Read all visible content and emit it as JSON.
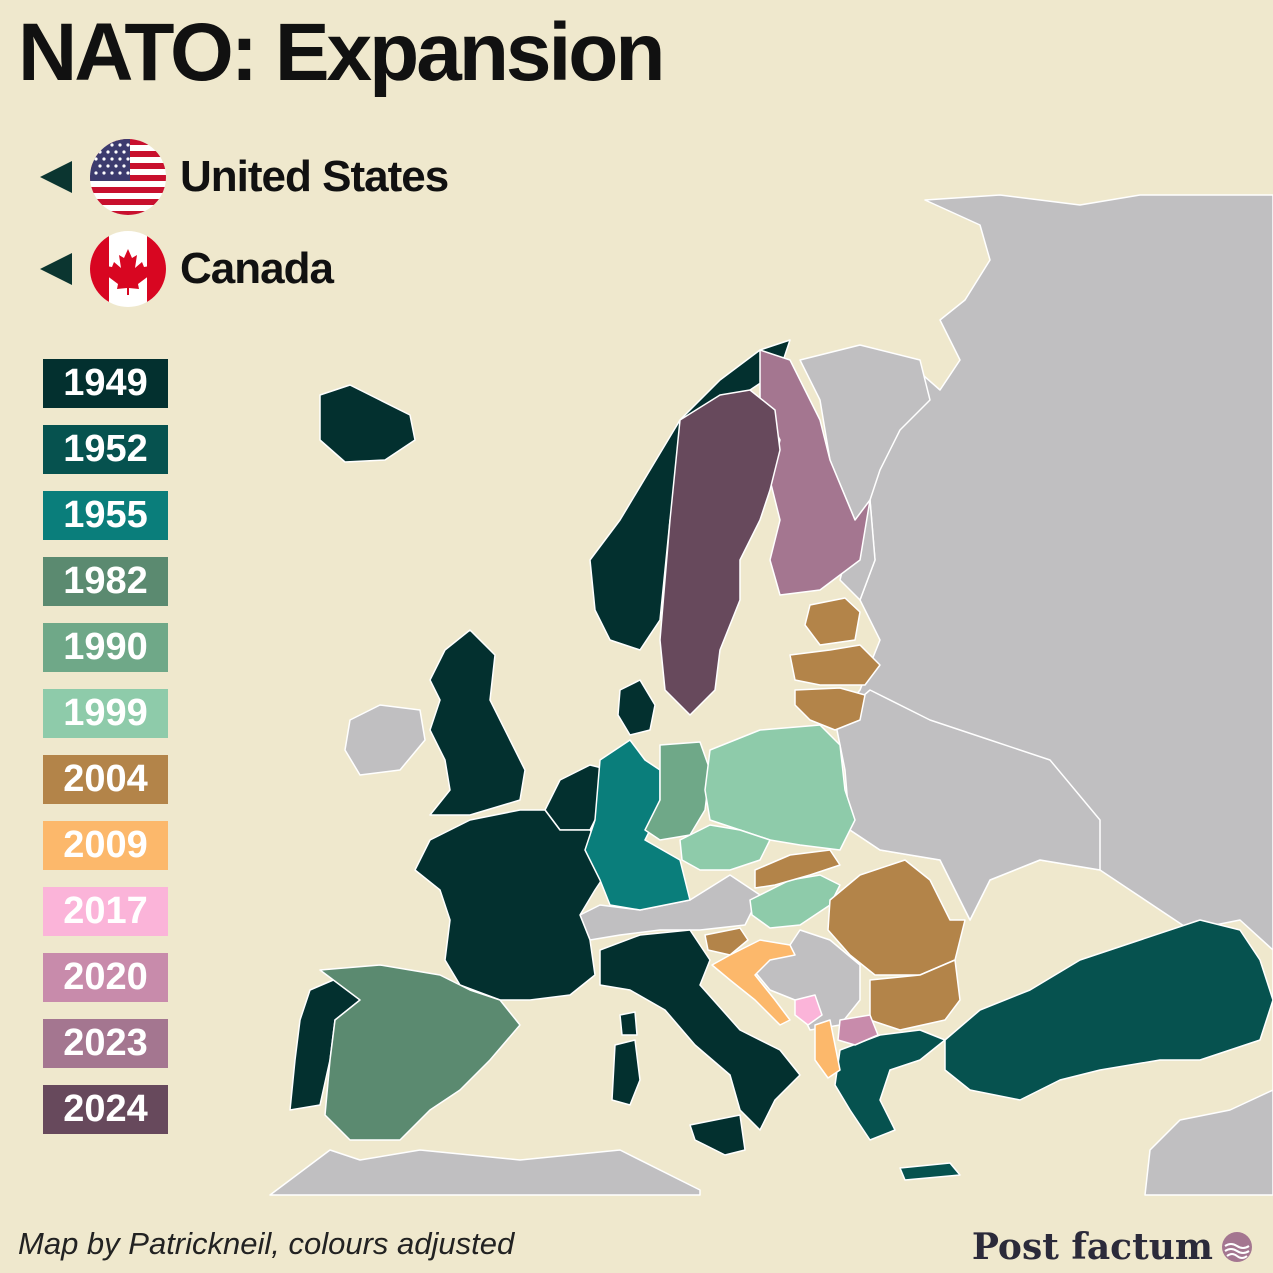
{
  "title": "NATO: Expansion",
  "allies": [
    {
      "name": "United States",
      "icon": "us-flag-icon"
    },
    {
      "name": "Canada",
      "icon": "canada-flag-icon"
    }
  ],
  "legend": [
    {
      "year": "1949",
      "color": "#03302f"
    },
    {
      "year": "1952",
      "color": "#06524f"
    },
    {
      "year": "1955",
      "color": "#0a7e7b"
    },
    {
      "year": "1982",
      "color": "#5b8a70"
    },
    {
      "year": "1990",
      "color": "#6fa888"
    },
    {
      "year": "1999",
      "color": "#8ecbaa"
    },
    {
      "year": "2004",
      "color": "#b38449"
    },
    {
      "year": "2009",
      "color": "#fcb86b"
    },
    {
      "year": "2017",
      "color": "#fbb4d9"
    },
    {
      "year": "2020",
      "color": "#c88bab"
    },
    {
      "year": "2023",
      "color": "#a47690"
    },
    {
      "year": "2024",
      "color": "#67495c"
    }
  ],
  "colors": {
    "sea": "#efe8cd",
    "non_member": "#c0bfc1",
    "border": "#ffffff"
  },
  "credit": "Map by Patrickneil, colours adjusted",
  "brand": "Post factum"
}
